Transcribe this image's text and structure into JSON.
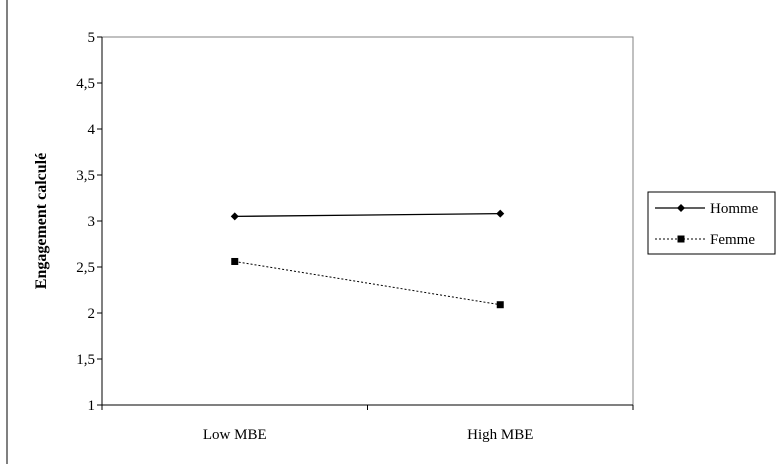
{
  "chart_data": {
    "type": "line",
    "categories": [
      "Low MBE",
      "High MBE"
    ],
    "series": [
      {
        "name": "Homme",
        "values": [
          3.05,
          3.08
        ],
        "line_style": "solid",
        "marker": "diamond",
        "color": "#000000"
      },
      {
        "name": "Femme",
        "values": [
          2.56,
          2.09
        ],
        "line_style": "dotted",
        "marker": "square",
        "color": "#000000"
      }
    ],
    "title": "",
    "xlabel": "",
    "ylabel": "Engagement calculé",
    "ylim": [
      1,
      5
    ],
    "yticks": [
      "1",
      "1,5",
      "2",
      "2,5",
      "3",
      "3,5",
      "4",
      "4,5",
      "5"
    ],
    "grid": false,
    "legend_position": "right"
  }
}
